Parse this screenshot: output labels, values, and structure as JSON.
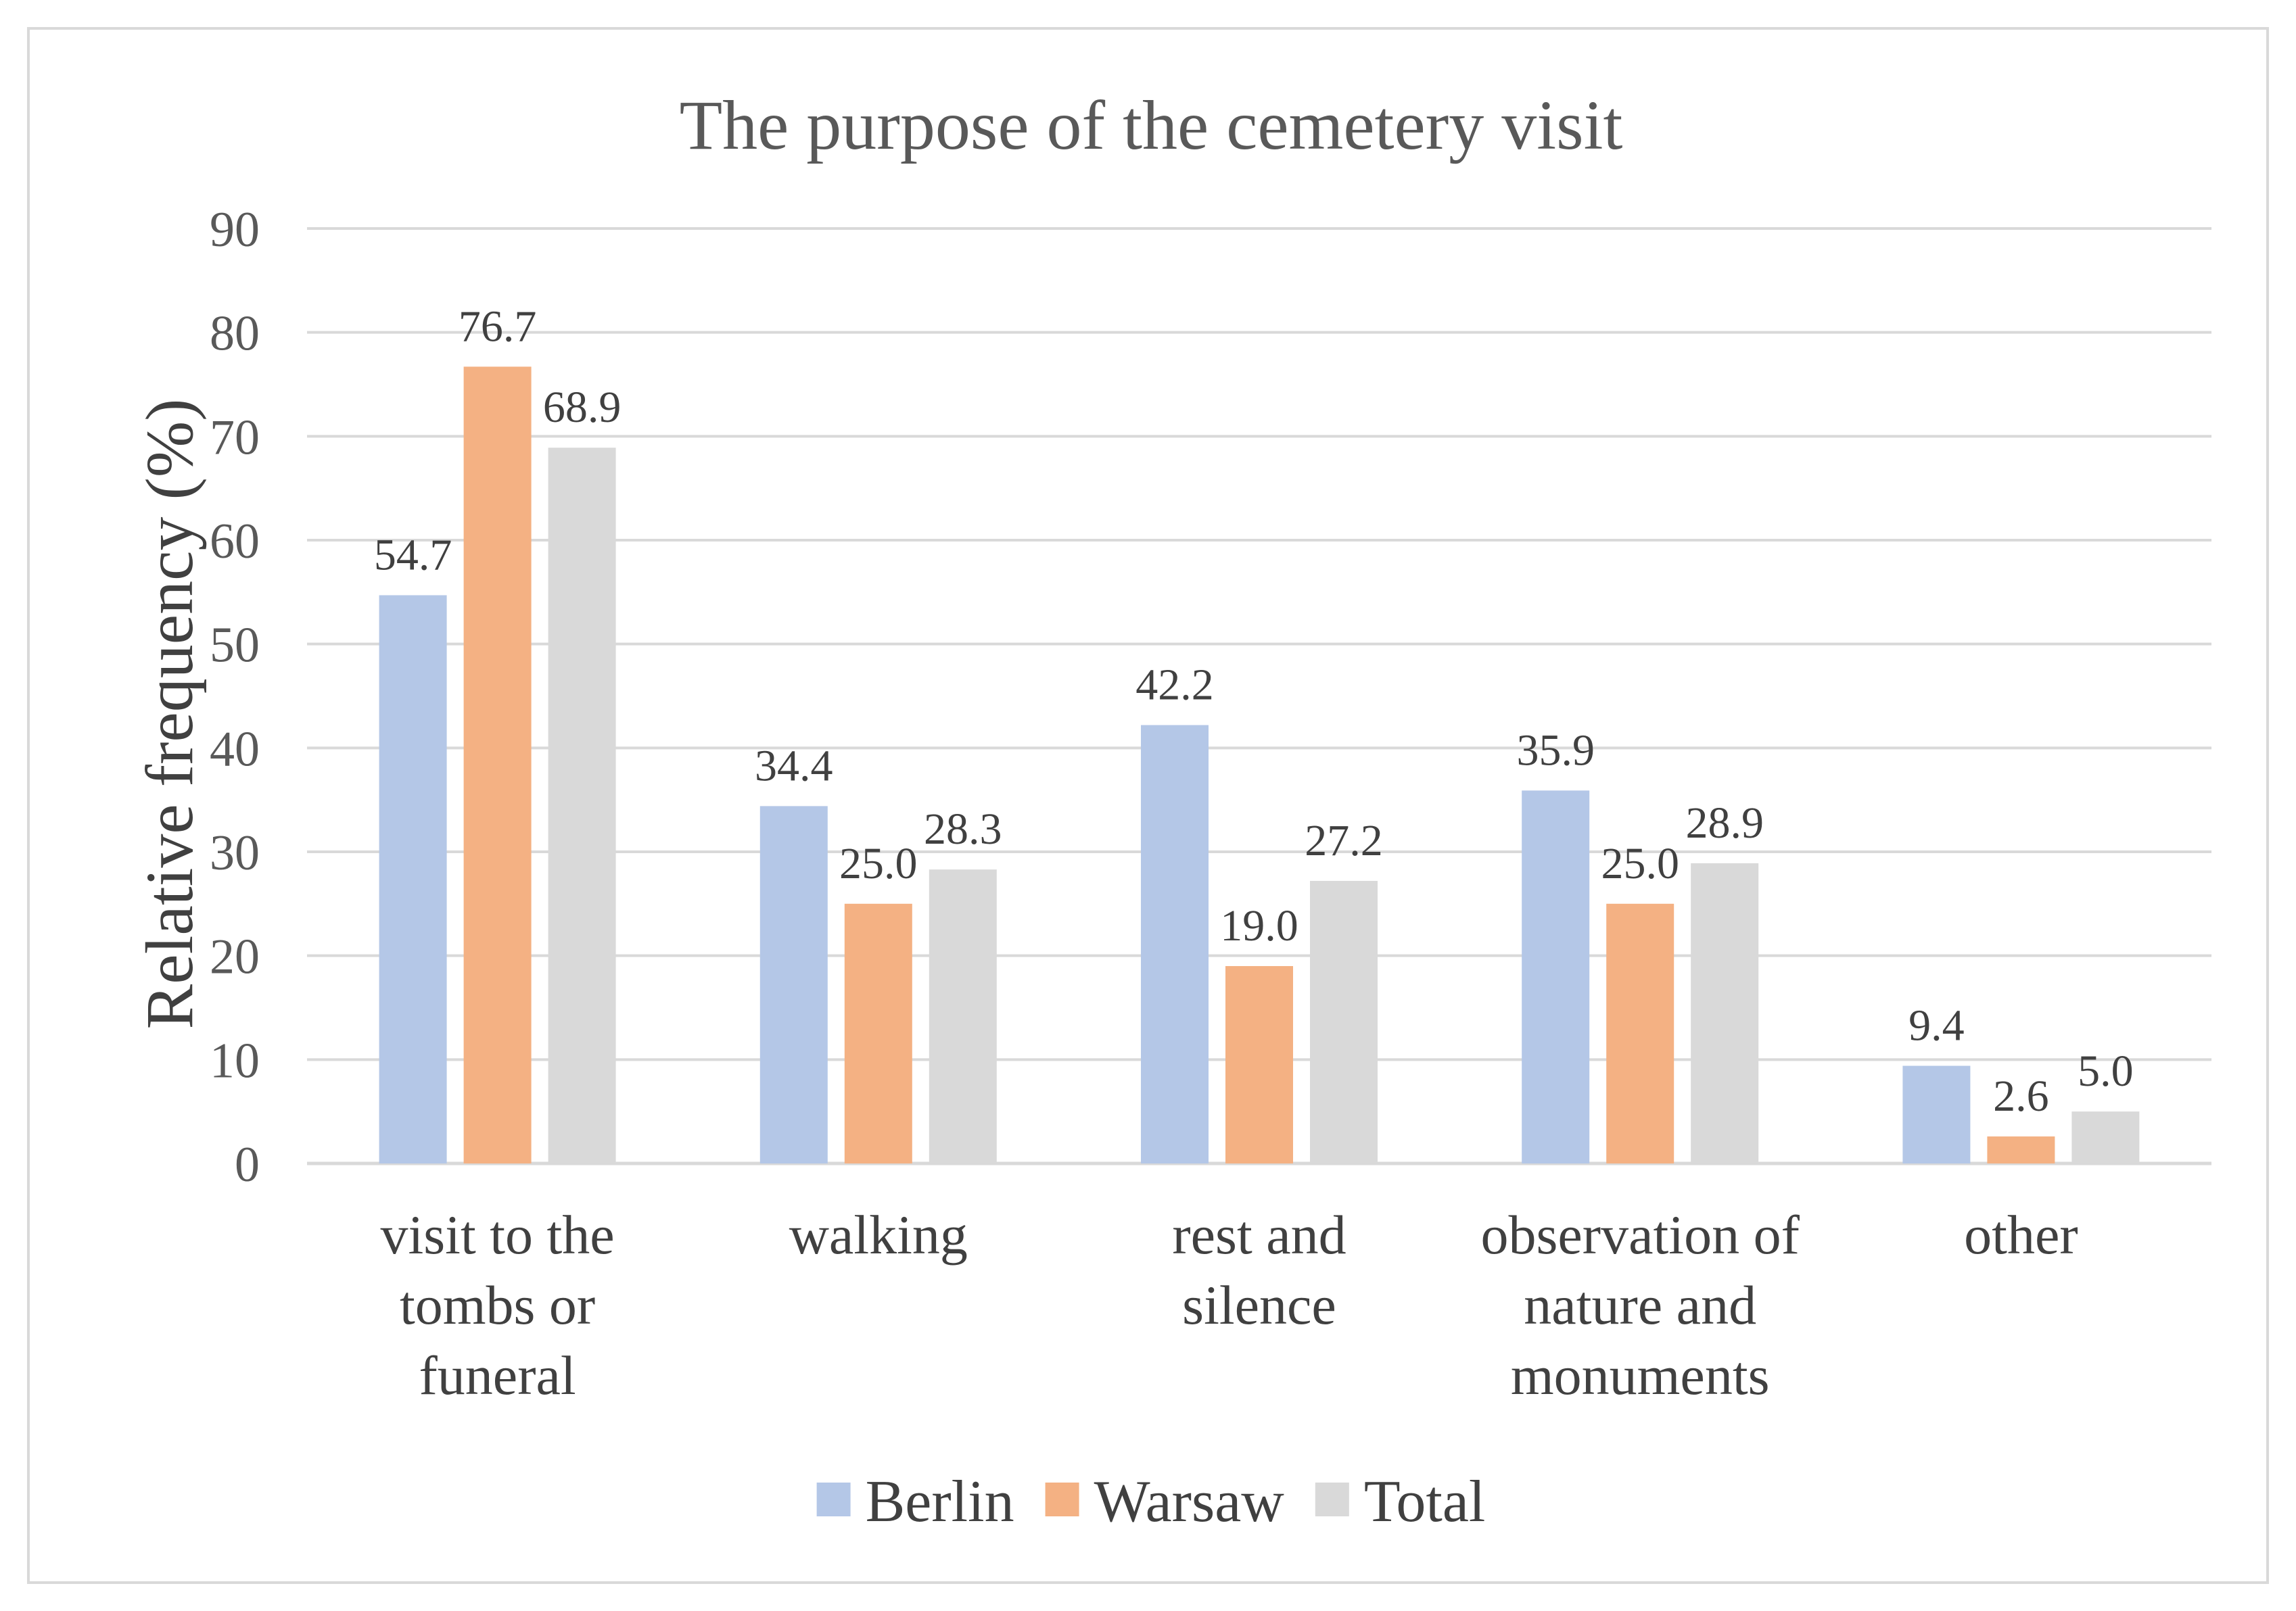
{
  "chart_data": {
    "type": "bar",
    "title": "The purpose of the cemetery visit",
    "xlabel": "",
    "ylabel": "Relative frequency (%)",
    "ylim": [
      0,
      90
    ],
    "yticks": [
      0,
      10,
      20,
      30,
      40,
      50,
      60,
      70,
      80,
      90
    ],
    "grid": true,
    "legend_position": "bottom",
    "categories": [
      [
        "visit to the",
        "tombs or",
        "funeral"
      ],
      [
        "walking"
      ],
      [
        "rest and",
        "silence"
      ],
      [
        "observation of",
        "nature and",
        "monuments"
      ],
      [
        "other"
      ]
    ],
    "series": [
      {
        "name": "Berlin",
        "color": "#b4c7e7",
        "values": [
          54.7,
          34.4,
          42.2,
          35.9,
          9.4
        ],
        "labels": [
          "54.7",
          "34.4",
          "42.2",
          "35.9",
          "9.4"
        ]
      },
      {
        "name": "Warsaw",
        "color": "#f4b183",
        "values": [
          76.7,
          25.0,
          19.0,
          25.0,
          2.6
        ],
        "labels": [
          "76.7",
          "25.0",
          "19.0",
          "25.0",
          "2.6"
        ]
      },
      {
        "name": "Total",
        "color": "#d9d9d9",
        "values": [
          68.9,
          28.3,
          27.2,
          28.9,
          5.0
        ],
        "labels": [
          "68.9",
          "28.3",
          "27.2",
          "28.9",
          "5.0"
        ]
      }
    ]
  }
}
